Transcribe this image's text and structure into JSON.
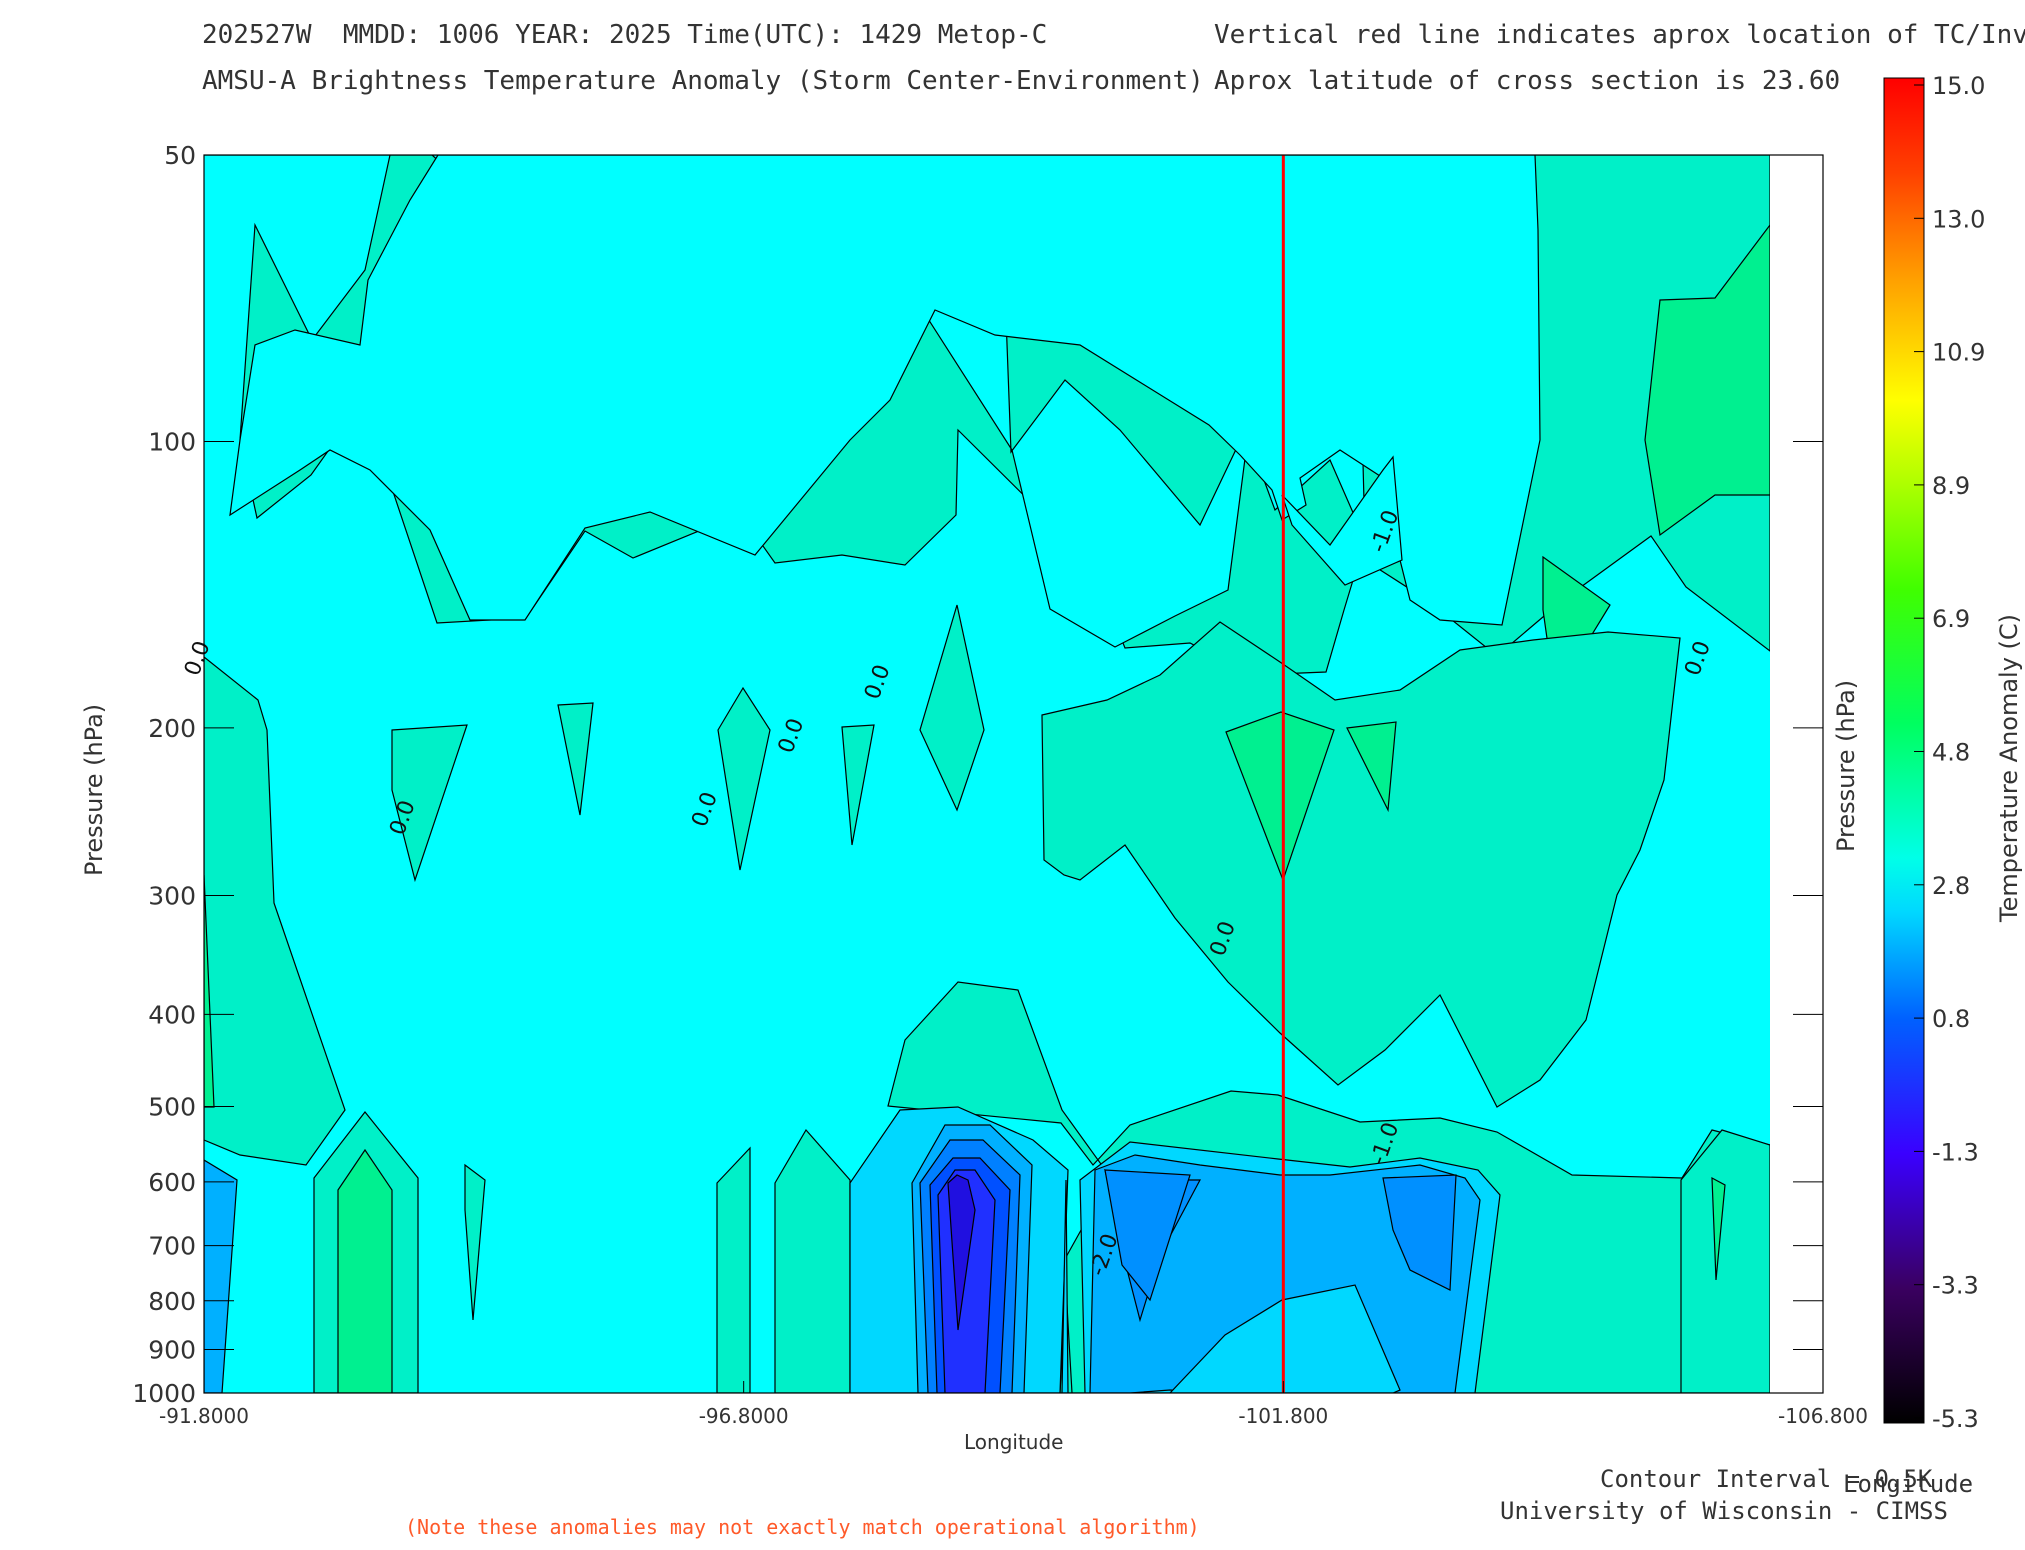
{
  "header": {
    "line1_left": "202527W  MMDD: 1006 YEAR: 2025 Time(UTC): 1429 Metop-C",
    "line2_left": "AMSU-A Brightness Temperature Anomaly (Storm Center-Environment)",
    "line1_right": "Vertical red line indicates aprox location of TC/Invest",
    "line2_right": "Aprox latitude of cross section is 23.60"
  },
  "chart_data": {
    "type": "heatmap",
    "xlabel": "Longitude",
    "xlabel_right": "Longitude",
    "ylabel": "Pressure (hPa)",
    "ylabel_right": "Pressure (hPa)",
    "x_ticks": [
      "-91.8000",
      "-96.8000",
      "-101.800",
      "-106.800"
    ],
    "x_range": [
      -91.8,
      -106.8
    ],
    "y_scale": "log",
    "y_range_hpa": [
      50,
      1000
    ],
    "y_ticks": [
      {
        "label": "50",
        "value": 50
      },
      {
        "label": "100",
        "value": 100
      },
      {
        "label": "200",
        "value": 200
      },
      {
        "label": "300",
        "value": 300
      },
      {
        "label": "400",
        "value": 400
      },
      {
        "label": "500",
        "value": 500
      },
      {
        "label": "600",
        "value": 600
      },
      {
        "label": "700",
        "value": 700
      },
      {
        "label": "800",
        "value": 800
      },
      {
        "label": "900",
        "value": 900
      },
      {
        "label": "1000",
        "value": 1000
      }
    ],
    "storm_longitude": -101.8,
    "storm_line_color": "#ff0000",
    "contour_labels": [
      {
        "text": "0.0",
        "lon": -91.8,
        "p": 170
      },
      {
        "text": "0.0",
        "lon": -93.7,
        "p": 250
      },
      {
        "text": "0.0",
        "lon": -96.5,
        "p": 245
      },
      {
        "text": "0.0",
        "lon": -97.3,
        "p": 205
      },
      {
        "text": "0.0",
        "lon": -98.1,
        "p": 180
      },
      {
        "text": "0.0",
        "lon": -101.3,
        "p": 335
      },
      {
        "text": "0.0",
        "lon": -105.7,
        "p": 170
      },
      {
        "text": "-1.0",
        "lon": -102.8,
        "p": 125
      },
      {
        "text": "-1.0",
        "lon": -102.8,
        "p": 550
      },
      {
        "text": "-2.0",
        "lon": -100.2,
        "p": 720
      }
    ],
    "colorbar": {
      "label": "Temperature Anomaly (C)",
      "ticks": [
        "15.0",
        "13.0",
        "10.9",
        "8.9",
        "6.9",
        "4.8",
        "2.8",
        "0.8",
        "-1.3",
        "-3.3",
        "-5.3"
      ],
      "range": [
        -5.3,
        15.0
      ]
    },
    "legend": "none",
    "grid": false
  },
  "footer": {
    "contour_interval": "Contour Interval = 0.5K",
    "institution": "University of Wisconsin - CIMSS",
    "note": "(Note these anomalies may not exactly match operational algorithm)"
  }
}
